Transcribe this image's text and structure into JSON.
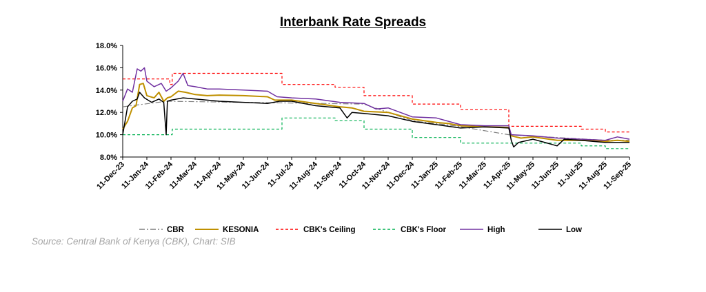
{
  "title": "Interbank Rate Spreads",
  "source": "Source: Central Bank of Kenya (CBK), Chart: SIB",
  "chart_data": {
    "type": "line",
    "title": "Interbank Rate Spreads",
    "xlabel": "",
    "ylabel": "",
    "ylim": [
      8.0,
      18.0
    ],
    "y_ticks": [
      "8.0%",
      "10.0%",
      "12.0%",
      "14.0%",
      "16.0%",
      "18.0%"
    ],
    "x_ticks": [
      "11-Dec-23",
      "11-Jan-24",
      "11-Feb-24",
      "11-Mar-24",
      "11-Apr-24",
      "11-May-24",
      "11-Jun-24",
      "11-Jul-24",
      "11-Aug-24",
      "11-Sep-24",
      "11-Oct-24",
      "11-Nov-24",
      "11-Dec-24",
      "11-Jan-25",
      "11-Feb-25",
      "11-Mar-25",
      "11-Apr-25",
      "11-May-25",
      "11-Jun-25",
      "11-Jul-25",
      "11-Aug-25",
      "11-Sep-25"
    ],
    "grid": false,
    "legend_position": "bottom",
    "colors": {
      "CBR": "#7f7f7f",
      "KESONIA": "#bf9000",
      "CBK's Ceiling": "#ff0000",
      "CBK's Floor": "#00b050",
      "High": "#7030a0",
      "Low": "#000000"
    },
    "series": [
      {
        "name": "CBR",
        "style": "dash-dot",
        "points": [
          [
            0,
            12.5
          ],
          [
            1.82,
            13.0
          ],
          [
            10.0,
            12.75
          ],
          [
            12.0,
            11.25
          ],
          [
            13.9,
            10.75
          ],
          [
            16.0,
            10.0
          ],
          [
            18.0,
            9.75
          ],
          [
            20.0,
            9.5
          ],
          [
            21.0,
            9.5
          ]
        ]
      },
      {
        "name": "KESONIA",
        "style": "solid",
        "points": [
          [
            0,
            10.5
          ],
          [
            0.2,
            11.2
          ],
          [
            0.4,
            12.4
          ],
          [
            0.55,
            12.6
          ],
          [
            0.7,
            14.5
          ],
          [
            0.85,
            14.6
          ],
          [
            1.0,
            13.5
          ],
          [
            1.3,
            13.3
          ],
          [
            1.5,
            13.8
          ],
          [
            1.7,
            13.0
          ],
          [
            1.85,
            13.3
          ],
          [
            2.0,
            13.4
          ],
          [
            2.3,
            13.9
          ],
          [
            2.6,
            13.8
          ],
          [
            3.0,
            13.6
          ],
          [
            3.5,
            13.5
          ],
          [
            4.0,
            13.55
          ],
          [
            5.0,
            13.5
          ],
          [
            6.0,
            13.4
          ],
          [
            6.3,
            13.1
          ],
          [
            7.0,
            13.1
          ],
          [
            8.0,
            12.8
          ],
          [
            9.0,
            12.5
          ],
          [
            9.5,
            12.4
          ],
          [
            10.0,
            12.1
          ],
          [
            11.0,
            12.0
          ],
          [
            12.0,
            11.4
          ],
          [
            13.0,
            11.1
          ],
          [
            13.5,
            11.0
          ],
          [
            14.0,
            10.8
          ],
          [
            15.0,
            10.7
          ],
          [
            16.0,
            10.65
          ],
          [
            16.1,
            9.9
          ],
          [
            16.5,
            9.7
          ],
          [
            17.0,
            9.8
          ],
          [
            18.0,
            9.5
          ],
          [
            19.0,
            9.5
          ],
          [
            20.0,
            9.4
          ],
          [
            20.5,
            9.5
          ],
          [
            21.0,
            9.4
          ]
        ]
      },
      {
        "name": "CBK's Ceiling",
        "style": "dashed",
        "points": [
          [
            0,
            15.0
          ],
          [
            1.95,
            15.0
          ],
          [
            1.95,
            14.5
          ],
          [
            2.05,
            14.5
          ],
          [
            2.05,
            15.5
          ],
          [
            6.6,
            15.5
          ],
          [
            6.6,
            14.5
          ],
          [
            8.8,
            14.5
          ],
          [
            8.8,
            14.25
          ],
          [
            10.0,
            14.25
          ],
          [
            10.0,
            13.5
          ],
          [
            12.0,
            13.5
          ],
          [
            12.0,
            12.75
          ],
          [
            14.0,
            12.75
          ],
          [
            14.0,
            12.25
          ],
          [
            16.0,
            12.25
          ],
          [
            16.0,
            10.75
          ],
          [
            19.0,
            10.75
          ],
          [
            19.0,
            10.5
          ],
          [
            20.0,
            10.5
          ],
          [
            20.0,
            10.25
          ],
          [
            21.0,
            10.25
          ]
        ]
      },
      {
        "name": "CBK's Floor",
        "style": "dashed",
        "points": [
          [
            0,
            10.0
          ],
          [
            2.05,
            10.0
          ],
          [
            2.05,
            10.5
          ],
          [
            6.6,
            10.5
          ],
          [
            6.6,
            11.5
          ],
          [
            8.8,
            11.5
          ],
          [
            8.8,
            11.25
          ],
          [
            10.0,
            11.25
          ],
          [
            10.0,
            10.5
          ],
          [
            12.0,
            10.5
          ],
          [
            12.0,
            9.75
          ],
          [
            14.0,
            9.75
          ],
          [
            14.0,
            9.25
          ],
          [
            16.0,
            9.25
          ],
          [
            16.0,
            9.25
          ],
          [
            19.0,
            9.25
          ],
          [
            19.0,
            9.0
          ],
          [
            20.0,
            9.0
          ],
          [
            20.0,
            8.75
          ],
          [
            21.0,
            8.75
          ]
        ]
      },
      {
        "name": "High",
        "style": "solid",
        "points": [
          [
            0,
            13.0
          ],
          [
            0.2,
            14.1
          ],
          [
            0.4,
            13.8
          ],
          [
            0.6,
            15.9
          ],
          [
            0.75,
            15.7
          ],
          [
            0.9,
            16.0
          ],
          [
            1.0,
            14.8
          ],
          [
            1.3,
            14.3
          ],
          [
            1.6,
            14.6
          ],
          [
            1.8,
            13.9
          ],
          [
            2.0,
            14.2
          ],
          [
            2.3,
            14.8
          ],
          [
            2.5,
            15.5
          ],
          [
            2.7,
            14.4
          ],
          [
            3.0,
            14.3
          ],
          [
            3.5,
            14.1
          ],
          [
            4.0,
            14.1
          ],
          [
            5.0,
            14.0
          ],
          [
            6.0,
            13.9
          ],
          [
            6.4,
            13.4
          ],
          [
            7.0,
            13.3
          ],
          [
            8.0,
            13.2
          ],
          [
            9.0,
            12.9
          ],
          [
            10.0,
            12.8
          ],
          [
            10.5,
            12.3
          ],
          [
            11.0,
            12.4
          ],
          [
            12.0,
            11.6
          ],
          [
            13.0,
            11.5
          ],
          [
            14.0,
            10.9
          ],
          [
            15.0,
            10.8
          ],
          [
            16.0,
            10.8
          ],
          [
            16.1,
            10.0
          ],
          [
            17.0,
            9.9
          ],
          [
            18.0,
            9.7
          ],
          [
            19.0,
            9.6
          ],
          [
            20.0,
            9.5
          ],
          [
            20.5,
            9.8
          ],
          [
            21.0,
            9.6
          ]
        ]
      },
      {
        "name": "Low",
        "style": "solid",
        "points": [
          [
            0,
            10.0
          ],
          [
            0.2,
            12.5
          ],
          [
            0.4,
            13.0
          ],
          [
            0.6,
            13.2
          ],
          [
            0.7,
            13.8
          ],
          [
            0.9,
            13.3
          ],
          [
            1.2,
            12.9
          ],
          [
            1.5,
            13.2
          ],
          [
            1.7,
            12.9
          ],
          [
            1.8,
            10.0
          ],
          [
            1.85,
            13.0
          ],
          [
            2.0,
            13.1
          ],
          [
            2.5,
            13.3
          ],
          [
            3.0,
            13.2
          ],
          [
            4.0,
            13.0
          ],
          [
            5.0,
            12.9
          ],
          [
            6.0,
            12.8
          ],
          [
            6.5,
            13.0
          ],
          [
            7.0,
            13.0
          ],
          [
            8.0,
            12.6
          ],
          [
            9.0,
            12.4
          ],
          [
            9.3,
            11.5
          ],
          [
            9.5,
            12.0
          ],
          [
            10.0,
            11.9
          ],
          [
            11.0,
            11.7
          ],
          [
            12.0,
            11.2
          ],
          [
            13.0,
            10.9
          ],
          [
            14.0,
            10.6
          ],
          [
            15.0,
            10.7
          ],
          [
            16.0,
            10.6
          ],
          [
            16.1,
            9.5
          ],
          [
            16.2,
            8.9
          ],
          [
            16.4,
            9.3
          ],
          [
            17.0,
            9.6
          ],
          [
            17.5,
            9.3
          ],
          [
            18.0,
            9.0
          ],
          [
            18.3,
            9.6
          ],
          [
            19.0,
            9.5
          ],
          [
            20.0,
            9.3
          ],
          [
            21.0,
            9.3
          ]
        ]
      }
    ]
  }
}
